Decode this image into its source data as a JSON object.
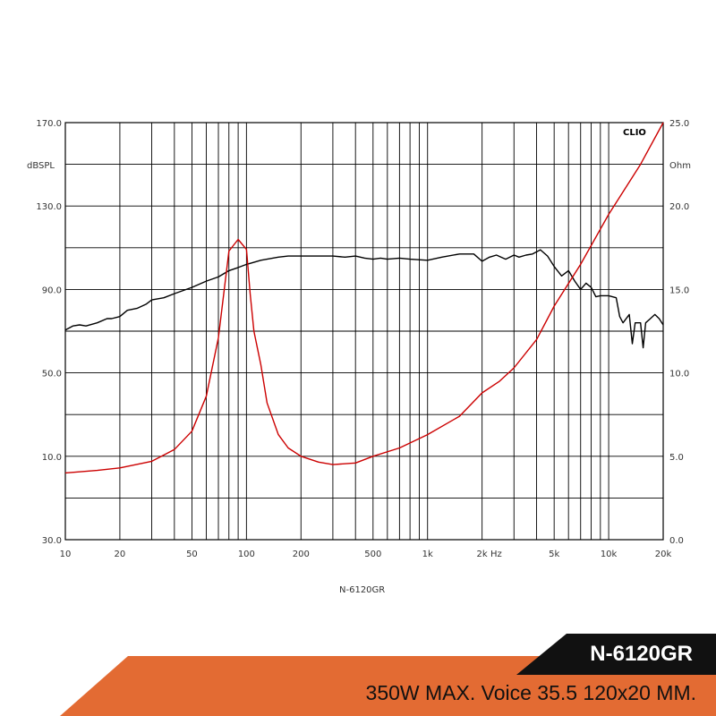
{
  "chart_data": {
    "type": "line",
    "brand": "CLIO",
    "caption": "N-6120GR",
    "x_scale": "log",
    "xlim": [
      10,
      20000
    ],
    "x_ticks": [
      {
        "v": 10,
        "label": "10"
      },
      {
        "v": 20,
        "label": "20"
      },
      {
        "v": 50,
        "label": "50"
      },
      {
        "v": 100,
        "label": "100"
      },
      {
        "v": 200,
        "label": "200"
      },
      {
        "v": 500,
        "label": "500"
      },
      {
        "v": 1000,
        "label": "1k"
      },
      {
        "v": 2000,
        "label": "2k"
      },
      {
        "v": 5000,
        "label": "5k"
      },
      {
        "v": 10000,
        "label": "10k"
      },
      {
        "v": 20000,
        "label": "20k"
      }
    ],
    "x_unit_label": "Hz",
    "x_grid": [
      10,
      20,
      30,
      40,
      50,
      60,
      70,
      80,
      90,
      100,
      200,
      300,
      400,
      500,
      600,
      700,
      800,
      900,
      1000,
      2000,
      3000,
      4000,
      5000,
      6000,
      7000,
      8000,
      9000,
      10000,
      20000
    ],
    "left_axis": {
      "unit": "dBSPL",
      "ylim": [
        -30,
        170
      ],
      "ticks": [
        {
          "v": 170,
          "label": "170.0"
        },
        {
          "v": 130,
          "label": "130.0"
        },
        {
          "v": 90,
          "label": "90.0"
        },
        {
          "v": 50,
          "label": "50.0"
        },
        {
          "v": 10,
          "label": "10.0"
        },
        {
          "v": -30,
          "label": "30.0"
        }
      ]
    },
    "right_axis": {
      "unit": "Ohm",
      "ylim": [
        0,
        25
      ],
      "ticks": [
        {
          "v": 25,
          "label": "25.0"
        },
        {
          "v": 20,
          "label": "20.0"
        },
        {
          "v": 15,
          "label": "15.0"
        },
        {
          "v": 10,
          "label": "10.0"
        },
        {
          "v": 5,
          "label": "5.0"
        },
        {
          "v": 0,
          "label": "0.0"
        }
      ]
    },
    "h_grid_left_values": [
      150,
      130,
      110,
      90,
      70,
      50,
      30,
      10,
      -10
    ],
    "grid": true,
    "series": [
      {
        "axis": "left",
        "color": "#000000",
        "x": [
          10,
          11,
          12,
          13,
          15,
          17,
          18,
          20,
          22,
          25,
          28,
          30,
          35,
          40,
          50,
          60,
          70,
          80,
          90,
          100,
          110,
          120,
          150,
          170,
          200,
          250,
          300,
          350,
          400,
          450,
          500,
          550,
          600,
          700,
          800,
          1000,
          1200,
          1500,
          1800,
          2000,
          2200,
          2400,
          2700,
          3000,
          3200,
          3500,
          3800,
          4200,
          4600,
          5000,
          5500,
          6000,
          6500,
          7000,
          7500,
          8000,
          8500,
          9000,
          10000,
          11000,
          11500,
          12000,
          13000,
          13500,
          14000,
          15000,
          15500,
          16000,
          17000,
          18000,
          19000,
          20000
        ],
        "values": [
          70.5,
          72.5,
          73,
          72.5,
          74,
          76,
          76,
          77,
          80,
          81,
          83,
          85,
          86,
          88,
          91,
          94,
          96,
          99,
          100.5,
          102,
          103,
          104,
          105.5,
          106,
          106,
          106,
          106,
          105.5,
          106,
          105,
          104.5,
          105,
          104.5,
          105,
          104.5,
          104,
          105.5,
          107,
          107,
          103.5,
          105.5,
          106.5,
          104.5,
          106.5,
          105.5,
          106.5,
          107,
          109,
          106,
          101,
          96.5,
          99,
          94,
          90,
          93,
          91,
          86.5,
          87,
          87,
          86,
          77,
          74,
          78,
          64,
          74,
          74,
          62,
          74,
          76,
          78,
          76,
          73
        ]
      },
      {
        "axis": "right",
        "color": "#cc0000",
        "x": [
          10,
          15,
          20,
          30,
          40,
          50,
          60,
          70,
          80,
          90,
          100,
          105,
          110,
          120,
          130,
          150,
          170,
          200,
          250,
          300,
          400,
          500,
          700,
          1000,
          1500,
          2000,
          2500,
          3000,
          4000,
          5000,
          7000,
          10000,
          15000,
          20000
        ],
        "values": [
          4.0,
          4.15,
          4.3,
          4.7,
          5.4,
          6.5,
          8.6,
          12.1,
          17.3,
          18.0,
          17.4,
          14.7,
          12.5,
          10.5,
          8.2,
          6.3,
          5.5,
          5.0,
          4.65,
          4.5,
          4.6,
          5.0,
          5.5,
          6.3,
          7.4,
          8.8,
          9.5,
          10.3,
          12.0,
          14.0,
          16.5,
          19.5,
          22.5,
          25
        ]
      }
    ]
  },
  "banner": {
    "model": "N-6120GR",
    "spec": "350W MAX. Voice 35.5 120x20 MM."
  }
}
